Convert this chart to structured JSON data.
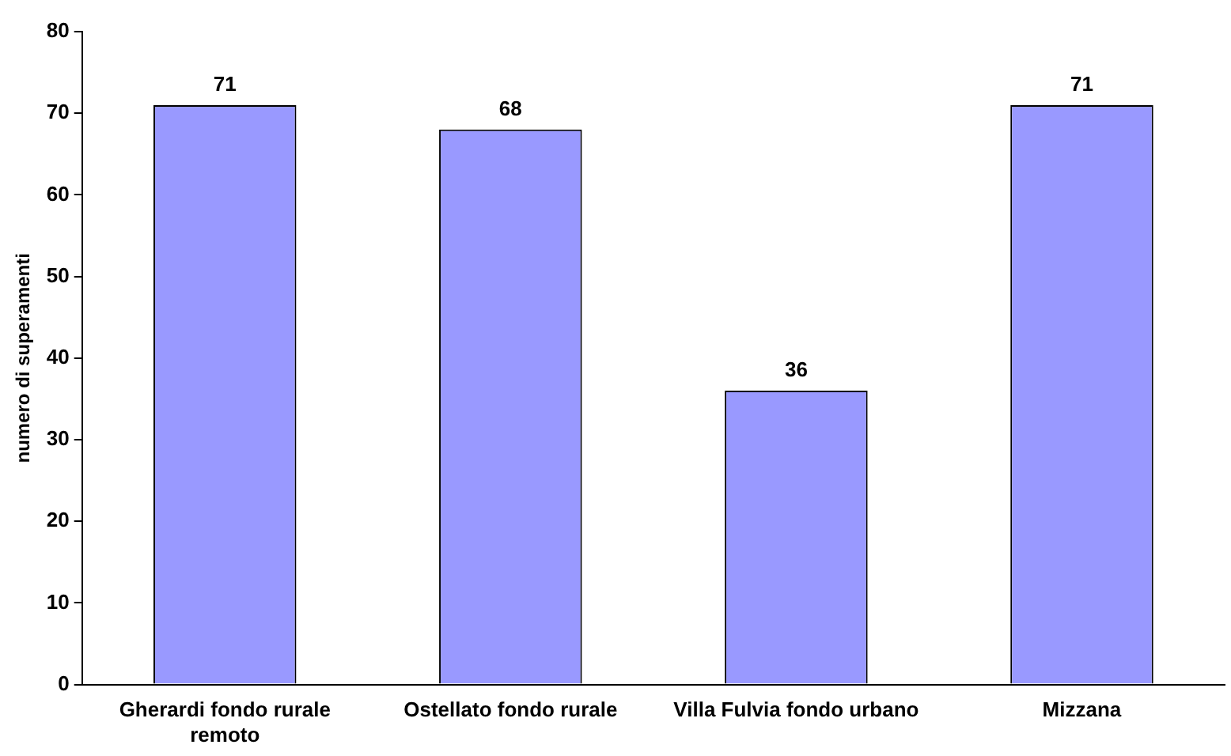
{
  "chart_data": {
    "type": "bar",
    "ylabel": "numero di superamenti",
    "categories": [
      "Gherardi fondo rurale remoto",
      "Ostellato fondo rurale",
      "Villa Fulvia fondo urbano",
      "Mizzana"
    ],
    "values": [
      71,
      68,
      36,
      71
    ],
    "color": "#9999ff",
    "ylim": [
      0,
      80
    ],
    "yticks": [
      0,
      10,
      20,
      30,
      40,
      50,
      60,
      70,
      80
    ],
    "grid": false,
    "legend": false,
    "data_labels": true
  }
}
